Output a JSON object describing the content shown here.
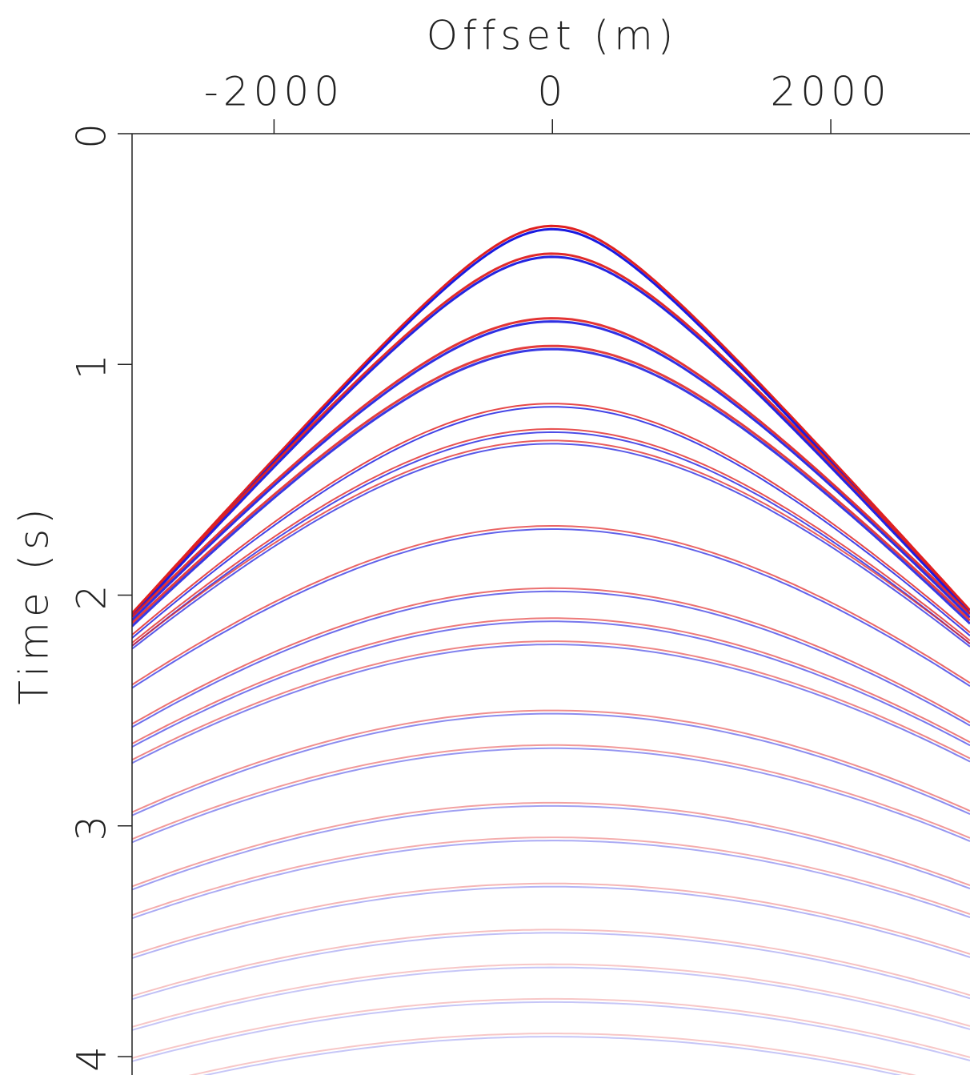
{
  "chart_data": {
    "type": "seismic",
    "xlabel": "Offset (m)",
    "ylabel": "Time (s)",
    "xlim": [
      -3020,
      3000
    ],
    "xticks": [
      -2000,
      0,
      2000
    ],
    "ylim": [
      0,
      4.08
    ],
    "yticks": [
      0,
      1,
      2,
      3,
      4
    ],
    "colors": [
      "#e02020",
      "#1a1ae0"
    ],
    "events": [
      {
        "t0": 0.4,
        "velocity": 1480
      },
      {
        "t0": 0.52,
        "velocity": 1500
      },
      {
        "t0": 0.8,
        "velocity": 1560
      },
      {
        "t0": 0.92,
        "velocity": 1580
      },
      {
        "t0": 1.17,
        "velocity": 1650
      },
      {
        "t0": 1.28,
        "velocity": 1680
      },
      {
        "t0": 1.33,
        "velocity": 1700
      },
      {
        "t0": 1.7,
        "velocity": 1800
      },
      {
        "t0": 1.97,
        "velocity": 1850
      },
      {
        "t0": 2.1,
        "velocity": 1880
      },
      {
        "t0": 2.2,
        "velocity": 1900
      },
      {
        "t0": 2.5,
        "velocity": 1950
      },
      {
        "t0": 2.65,
        "velocity": 1980
      },
      {
        "t0": 2.9,
        "velocity": 2020
      },
      {
        "t0": 3.05,
        "velocity": 2050
      },
      {
        "t0": 3.25,
        "velocity": 2080
      },
      {
        "t0": 3.45,
        "velocity": 2100
      },
      {
        "t0": 3.6,
        "velocity": 2120
      },
      {
        "t0": 3.75,
        "velocity": 2140
      },
      {
        "t0": 3.9,
        "velocity": 2160
      }
    ]
  }
}
